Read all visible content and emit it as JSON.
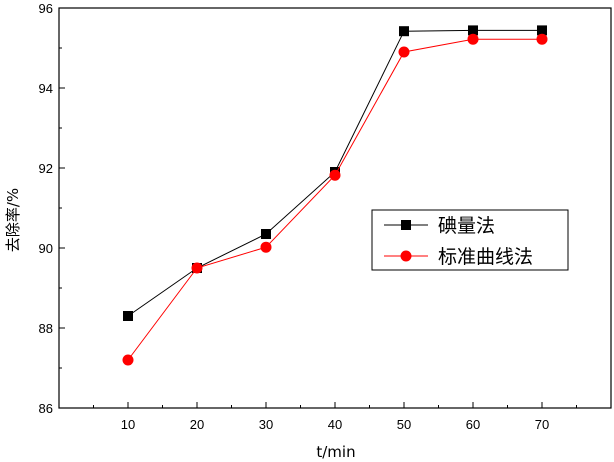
{
  "chart_data": {
    "type": "line",
    "title": "",
    "xlabel": "t/min",
    "ylabel": "去除率/%",
    "x": [
      10,
      20,
      30,
      40,
      50,
      60,
      70
    ],
    "xlim": [
      0,
      80
    ],
    "ylim": [
      86,
      96
    ],
    "xticks": [
      10,
      20,
      30,
      40,
      50,
      60,
      70
    ],
    "yticks": [
      86,
      88,
      90,
      92,
      94,
      96
    ],
    "grid": false,
    "legend_position": "right-middle",
    "series": [
      {
        "name": "碘量法",
        "color": "#000000",
        "marker": "square",
        "values": [
          88.3,
          89.5,
          90.35,
          91.9,
          95.42,
          95.44,
          95.44
        ]
      },
      {
        "name": "标准曲线法",
        "color": "#ff0000",
        "marker": "circle",
        "values": [
          87.2,
          89.5,
          90.02,
          91.82,
          94.9,
          95.22,
          95.22
        ]
      }
    ]
  }
}
